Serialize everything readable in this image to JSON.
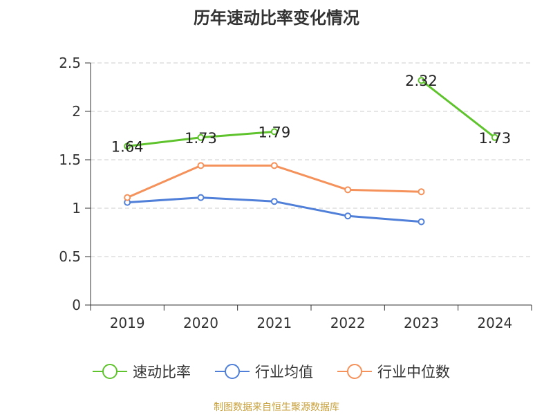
{
  "title": "历年速动比率变化情况",
  "source": "制图数据来自恒生聚源数据库",
  "chart_data": {
    "type": "line",
    "title": "历年速动比率变化情况",
    "categories": [
      "2019",
      "2020",
      "2021",
      "2022",
      "2023",
      "2024"
    ],
    "ylim": [
      0,
      2.5
    ],
    "yticks": [
      "0",
      "0.5",
      "1",
      "1.5",
      "2",
      "2.5"
    ],
    "grid": true,
    "legend_position": "bottom",
    "series": [
      {
        "name": "速动比率",
        "color": "#5fc32d",
        "values": [
          1.64,
          1.73,
          1.79,
          null,
          2.32,
          1.73
        ],
        "labels": [
          "1.64",
          "1.73",
          "1.79",
          "",
          "2.32",
          "1.73"
        ]
      },
      {
        "name": "行业均值",
        "color": "#4f7fd8",
        "values": [
          1.06,
          1.11,
          1.07,
          0.92,
          0.86,
          null
        ]
      },
      {
        "name": "行业中位数",
        "color": "#f5915a",
        "values": [
          1.11,
          1.44,
          1.44,
          1.19,
          1.17,
          null
        ]
      }
    ]
  }
}
